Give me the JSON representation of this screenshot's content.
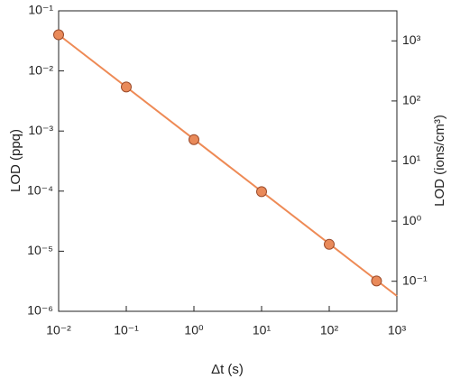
{
  "chart_data": {
    "type": "scatter",
    "x_label": "Δt (s)",
    "y_label": "LOD (ppq)",
    "y2_label": "LOD (ions/cm³)",
    "xscale": "log",
    "yscale": "log",
    "y2scale": "log",
    "xlim": [
      0.01,
      1000
    ],
    "ylim": [
      1e-06,
      0.1
    ],
    "y2lim": [
      0.03162,
      3162
    ],
    "xticks": [
      {
        "value": 0.01,
        "label": "10⁻²"
      },
      {
        "value": 0.1,
        "label": "10⁻¹"
      },
      {
        "value": 1,
        "label": "10⁰"
      },
      {
        "value": 10,
        "label": "10¹"
      },
      {
        "value": 100,
        "label": "10²"
      },
      {
        "value": 1000,
        "label": "10³"
      }
    ],
    "yticks": [
      {
        "value": 1e-06,
        "label": "10⁻⁶"
      },
      {
        "value": 1e-05,
        "label": "10⁻⁵"
      },
      {
        "value": 0.0001,
        "label": "10⁻⁴"
      },
      {
        "value": 0.001,
        "label": "10⁻³"
      },
      {
        "value": 0.01,
        "label": "10⁻²"
      },
      {
        "value": 0.1,
        "label": "10⁻¹"
      }
    ],
    "y2ticks": [
      {
        "value": 0.1,
        "label": "10⁻¹"
      },
      {
        "value": 1,
        "label": "10⁰"
      },
      {
        "value": 10,
        "label": "10¹"
      },
      {
        "value": 100,
        "label": "10²"
      },
      {
        "value": 1000,
        "label": "10³"
      }
    ],
    "series": [
      {
        "kind": "line",
        "color": "#ee8a55",
        "x": [
          0.01,
          1000
        ],
        "values": [
          0.04,
          1.8e-06
        ]
      },
      {
        "kind": "points",
        "color": "#e98a5a",
        "x": [
          0.01,
          0.1,
          1,
          10,
          100,
          500
        ],
        "values": [
          0.04,
          0.0054,
          0.00072,
          9.8e-05,
          1.3e-05,
          3.2e-06
        ]
      }
    ]
  }
}
